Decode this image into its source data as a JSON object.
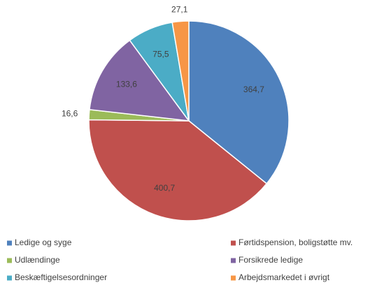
{
  "chart_data": {
    "type": "pie",
    "categories": [
      "Ledige og syge",
      "Førtidspension, boligstøtte mv.",
      "Udlændinge",
      "Forsikrede ledige",
      "Beskæftigelsesordninger",
      "Arbejdsmarkedet i øvrigt"
    ],
    "values": [
      364.7,
      400.7,
      16.6,
      133.6,
      75.5,
      27.1
    ],
    "value_labels": [
      "364,7",
      "400,7",
      "16,6",
      "133,6",
      "75,5",
      "27,1"
    ],
    "colors": [
      "#4f81bd",
      "#c0504d",
      "#9bbb59",
      "#8064a2",
      "#4bacc6",
      "#f79646"
    ],
    "legend": "bottom"
  }
}
